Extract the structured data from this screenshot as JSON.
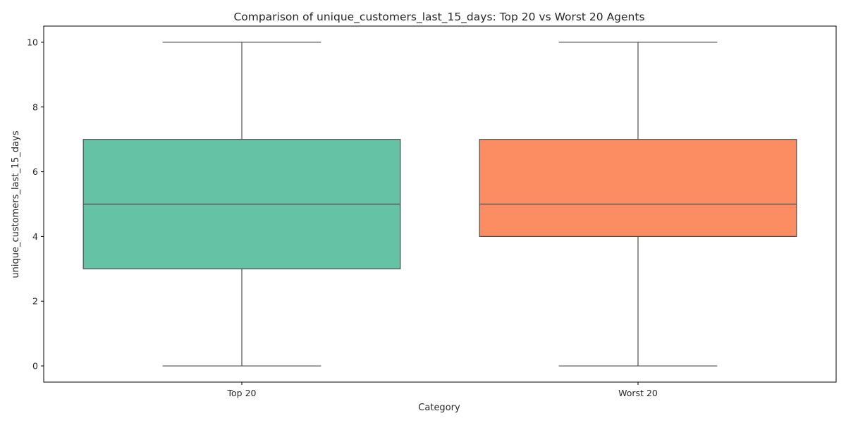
{
  "chart_data": {
    "type": "box",
    "title": "Comparison of unique_customers_last_15_days: Top 20 vs Worst 20 Agents",
    "xlabel": "Category",
    "ylabel": "unique_customers_last_15_days",
    "ylim": [
      -0.5,
      10.5
    ],
    "yticks": [
      0,
      2,
      4,
      6,
      8,
      10
    ],
    "categories": [
      "Top 20",
      "Worst 20"
    ],
    "boxes": [
      {
        "category": "Top 20",
        "whisker_low": 0,
        "q1": 3,
        "median": 5,
        "q3": 7,
        "whisker_high": 10,
        "color": "#66c2a5"
      },
      {
        "category": "Worst 20",
        "whisker_low": 0,
        "q1": 4,
        "median": 5,
        "q3": 7,
        "whisker_high": 10,
        "color": "#fc8d62"
      }
    ],
    "grid": false,
    "line_color": "#4d4d4d"
  }
}
